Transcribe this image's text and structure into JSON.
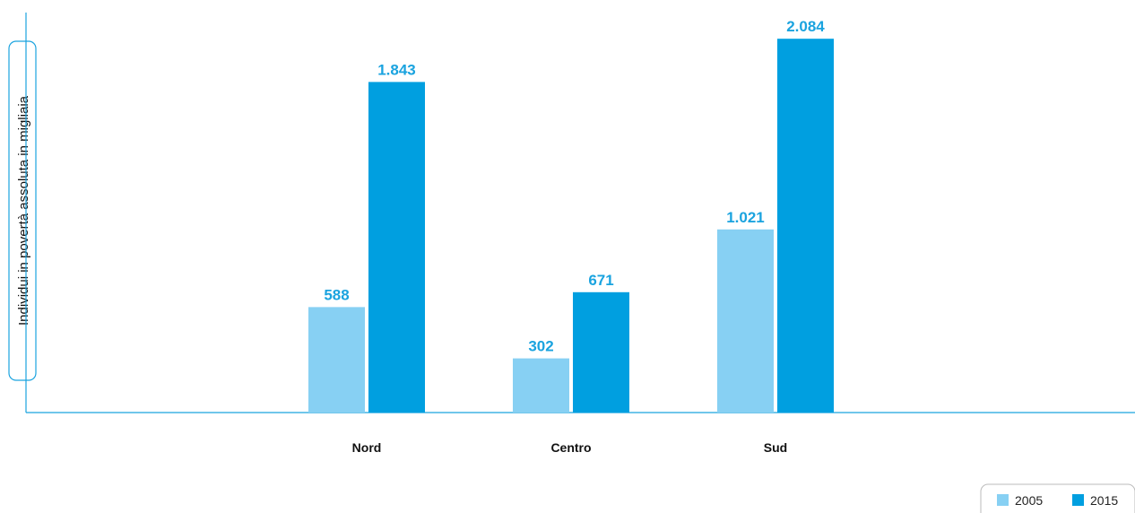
{
  "chart_data": {
    "type": "bar",
    "ylabel": "Individui in povertà assoluta in migliaia",
    "categories": [
      "Nord",
      "Centro",
      "Sud"
    ],
    "series": [
      {
        "name": "2005",
        "values": [
          588,
          302,
          1021
        ],
        "labels": [
          "588",
          "302",
          "1.021"
        ],
        "color": "#87d0f3"
      },
      {
        "name": "2015",
        "values": [
          1843,
          671,
          2084
        ],
        "labels": [
          "1.843",
          "671",
          "2.084"
        ],
        "color": "#009fe0"
      }
    ],
    "ylim": [
      0,
      2300
    ],
    "grid": false,
    "legend_position": "bottom-right",
    "colors": {
      "axis": "#1aa3df",
      "value_label": "#1aa3df",
      "text": "#111111"
    }
  }
}
